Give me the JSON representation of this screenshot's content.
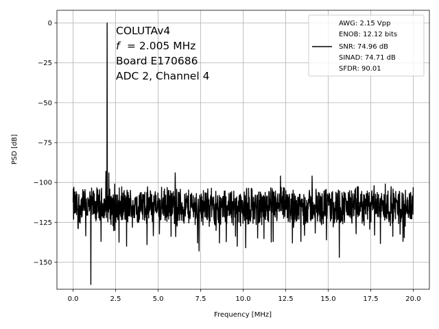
{
  "chart_data": {
    "type": "line",
    "xlabel": "Frequency [MHz]",
    "ylabel": "PSD [dB]",
    "xlim": [
      -0.95,
      20.95
    ],
    "ylim": [
      -167,
      8
    ],
    "grid": true,
    "legend_position": "top-right",
    "x_ticks": [
      0.0,
      2.5,
      5.0,
      7.5,
      10.0,
      12.5,
      15.0,
      17.5,
      20.0
    ],
    "x_tick_labels": [
      "0.0",
      "2.5",
      "5.0",
      "7.5",
      "10.0",
      "12.5",
      "15.0",
      "17.5",
      "20.0"
    ],
    "y_ticks": [
      0,
      -25,
      -50,
      -75,
      -100,
      -125,
      -150
    ],
    "y_tick_labels": [
      "0",
      "−25",
      "−50",
      "−75",
      "−100",
      "−125",
      "−150"
    ],
    "series": [
      {
        "color": "#000000",
        "noise_floor_db": -115,
        "noise_band_db": [
          -127,
          -105
        ],
        "frequency_range_mhz": [
          0.0,
          20.0
        ],
        "peaks": [
          {
            "x": 2.005,
            "y": 0
          },
          {
            "x": 1.93,
            "y": -93
          },
          {
            "x": 2.1,
            "y": -94
          },
          {
            "x": 6.0,
            "y": -94
          },
          {
            "x": 12.2,
            "y": -96
          },
          {
            "x": 14.05,
            "y": -96
          },
          {
            "x": 0.05,
            "y": -103
          },
          {
            "x": 20.0,
            "y": -103
          },
          {
            "x": 17.7,
            "y": -102
          },
          {
            "x": 2.45,
            "y": -101
          },
          {
            "x": 18.35,
            "y": -101
          }
        ],
        "dips": [
          {
            "x": 1.05,
            "y": -164
          },
          {
            "x": 15.65,
            "y": -147
          },
          {
            "x": 7.4,
            "y": -143
          },
          {
            "x": 1.65,
            "y": -137
          },
          {
            "x": 3.15,
            "y": -140
          },
          {
            "x": 9.65,
            "y": -140
          },
          {
            "x": 10.15,
            "y": -141
          },
          {
            "x": 4.35,
            "y": -139
          },
          {
            "x": 8.6,
            "y": -138
          },
          {
            "x": 12.9,
            "y": -138
          },
          {
            "x": 19.4,
            "y": -137
          },
          {
            "x": 14.9,
            "y": -136
          },
          {
            "x": 13.4,
            "y": -137
          }
        ]
      }
    ],
    "annotation_lines": [
      "COLUTAv4",
      "= 2.005 MHz",
      "Board E170686",
      "ADC 2, Channel 4"
    ],
    "annotation_f_symbol": "f",
    "legend_lines": [
      "AWG: 2.15 Vpp",
      "ENOB: 12.12 bits",
      "SNR: 74.96 dB",
      "SINAD: 74.71 dB",
      "SFDR: 90.01"
    ]
  }
}
